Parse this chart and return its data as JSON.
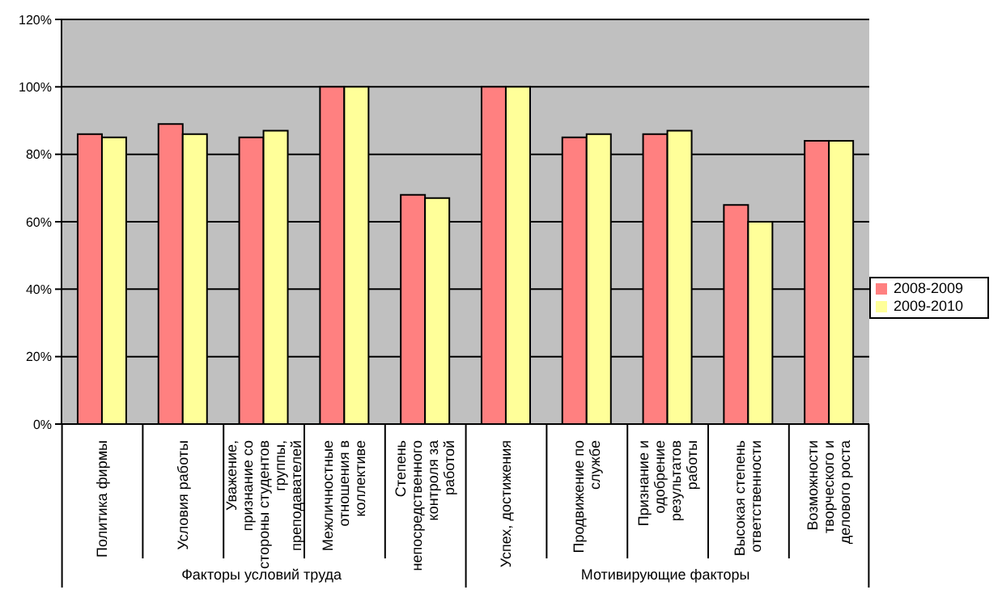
{
  "chart_data": {
    "type": "bar",
    "categories": [
      "Политика фирмы",
      "Условия работы",
      "Уважение, признание со стороны студентов группы, преподавателей",
      "Межличностные отношения в коллективе",
      "Степень непосредственного контроля за работой",
      "Успех, достижения",
      "Продвижение по службе",
      "Признание и одобрение результатов работы",
      "Высокая степень ответственности",
      "Возможности творческого и делового роста"
    ],
    "series": [
      {
        "name": "2008-2009",
        "color": "#ff8080",
        "values": [
          86,
          89,
          85,
          100,
          68,
          100,
          85,
          86,
          65,
          84
        ]
      },
      {
        "name": "2009-2010",
        "color": "#ffff99",
        "values": [
          85,
          86,
          87,
          100,
          67,
          100,
          86,
          87,
          60,
          84
        ]
      }
    ],
    "ylim": [
      0,
      120
    ],
    "yticks": [
      {
        "value": 0,
        "label": "0%"
      },
      {
        "value": 20,
        "label": "20%"
      },
      {
        "value": 40,
        "label": "40%"
      },
      {
        "value": 60,
        "label": "60%"
      },
      {
        "value": 80,
        "label": "80%"
      },
      {
        "value": 100,
        "label": "100%"
      },
      {
        "value": 120,
        "label": "120%"
      }
    ],
    "grid": "y",
    "legend": "right",
    "annotations": [
      "Факторы условий труда",
      "Мотивирующие факторы"
    ]
  }
}
